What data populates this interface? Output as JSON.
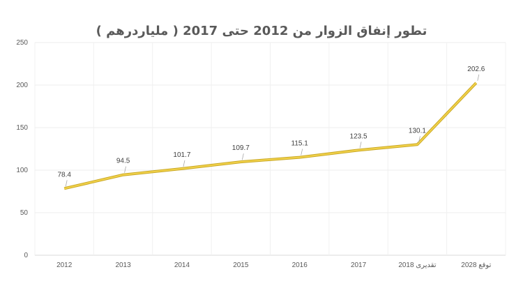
{
  "chart_data": {
    "type": "line",
    "title": "تطور إنفاق الزوار من 2012 حتى  2017 ( ملياردرهم )",
    "categories": [
      "2012",
      "2013",
      "2014",
      "2015",
      "2016",
      "2017",
      "2018 تقديرى",
      "توقع 2028"
    ],
    "series": [
      {
        "values": [
          78.4,
          94.5,
          101.7,
          109.7,
          115.1,
          123.5,
          130.1,
          202.6
        ]
      }
    ],
    "data_labels": [
      "78.4",
      "94.5",
      "101.7",
      "109.7",
      "115.1",
      "123.5",
      "130.1",
      "202.6"
    ],
    "ylim": [
      0,
      250
    ],
    "yticks": [
      "0",
      "50",
      "100",
      "150",
      "200",
      "250"
    ],
    "grid": true,
    "line_color": "#F2D24B"
  }
}
